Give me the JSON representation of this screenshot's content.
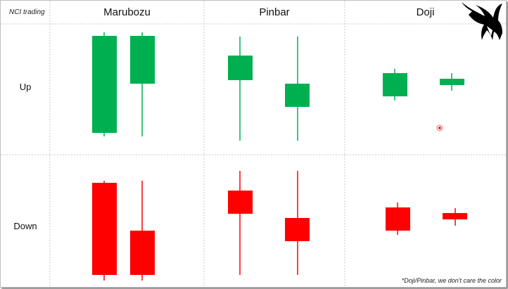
{
  "corner_label": "NCI trading",
  "columns": [
    "Marubozu",
    "Pinbar",
    "Doji"
  ],
  "rows": [
    "Up",
    "Down"
  ],
  "footnote": "*Doji/Pinbar, we don't care the color",
  "colors": {
    "bull": "#00b050",
    "bear": "#ff0000",
    "grid": "#c8c8c8",
    "logo": "#000000"
  },
  "icons": [
    "bull-logo-icon",
    "marker-dot-icon"
  ]
}
